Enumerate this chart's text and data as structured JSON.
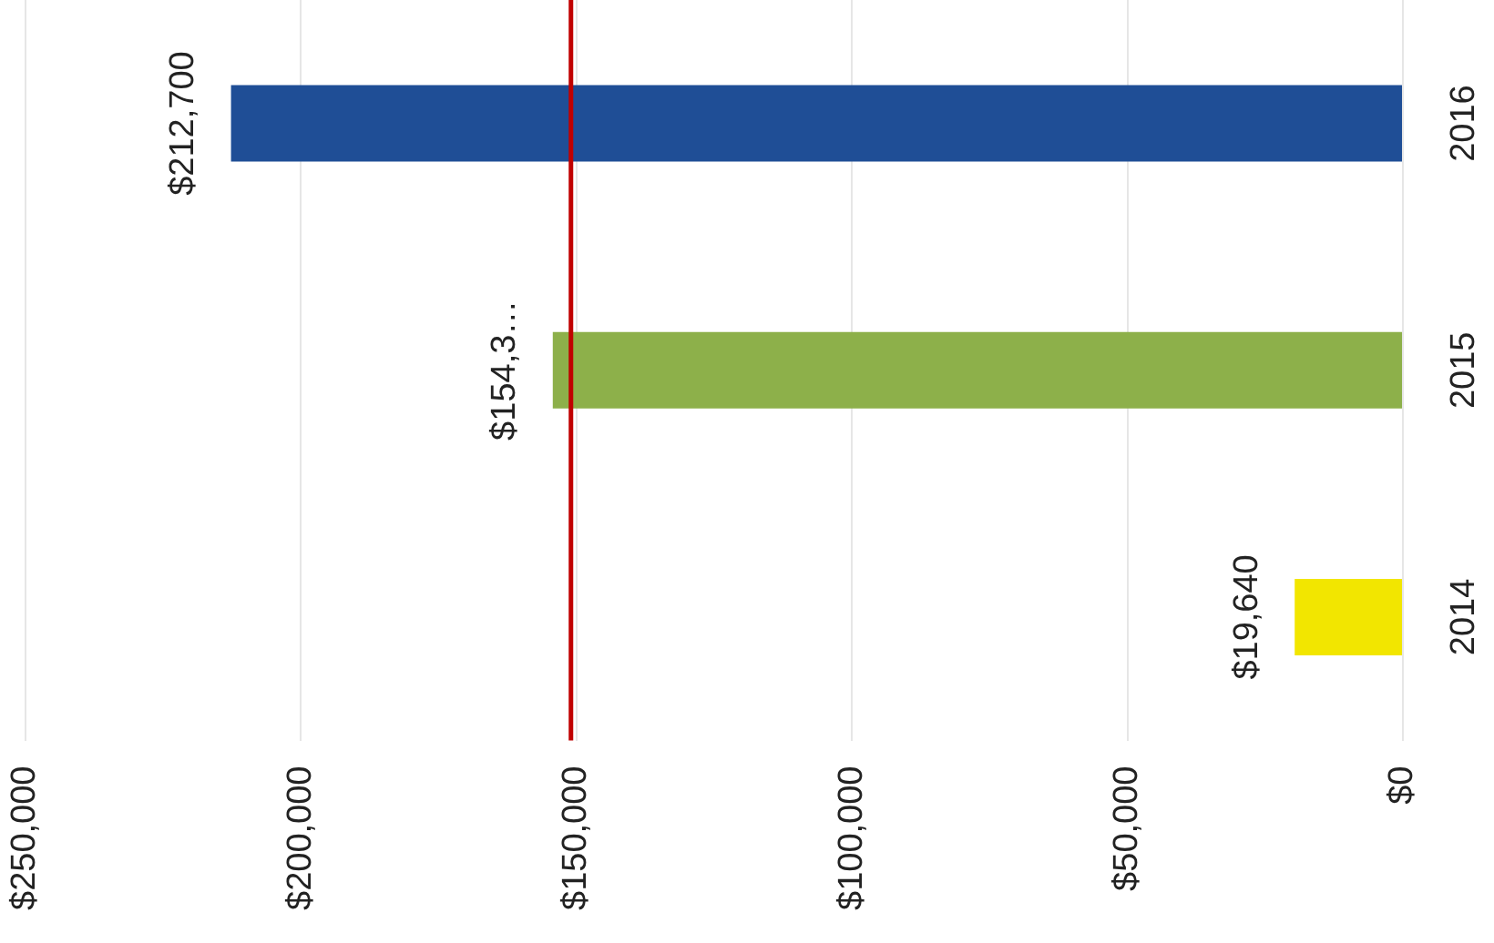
{
  "chart_data": {
    "type": "bar",
    "orientation": "horizontal",
    "categories": [
      "2016",
      "2015",
      "2014"
    ],
    "values": [
      212700,
      154300,
      19640
    ],
    "colors": [
      "#1f4e96",
      "#8db04a",
      "#f2e600"
    ],
    "value_labels": [
      "$212,700",
      "$154,3…",
      "$19,640"
    ],
    "xlim": [
      250000,
      0
    ],
    "xticks": [
      {
        "value": 250000,
        "label": "$250,000"
      },
      {
        "value": 200000,
        "label": "$200,000"
      },
      {
        "value": 150000,
        "label": "$150,000"
      },
      {
        "value": 100000,
        "label": "$100,000"
      },
      {
        "value": 50000,
        "label": "$50,000"
      },
      {
        "value": 0,
        "label": "$0"
      }
    ],
    "ref_lines": [
      {
        "axis": "x",
        "value": 151000,
        "color": "#c00000"
      }
    ],
    "grid": "x",
    "legend": false
  }
}
